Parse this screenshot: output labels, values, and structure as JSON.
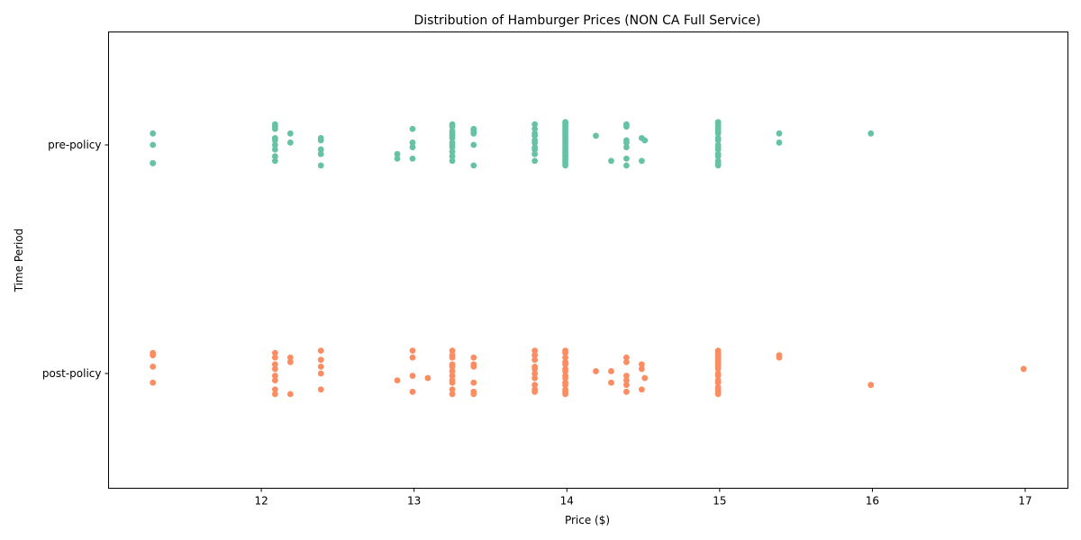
{
  "chart_data": {
    "type": "scatter",
    "title": "Distribution of Hamburger Prices (NON CA Full Service)",
    "xlabel": "Price ($)",
    "ylabel": "Time Period",
    "xlim": [
      11.0,
      17.28
    ],
    "x_ticks": [
      12,
      13,
      14,
      15,
      16,
      17
    ],
    "x_tick_labels": [
      "12",
      "13",
      "14",
      "15",
      "16",
      "17"
    ],
    "categories": [
      "pre-policy",
      "post-policy"
    ],
    "grid": false,
    "legend": "none",
    "series": [
      {
        "category": "pre-policy",
        "color": "#66c2a5",
        "points": [
          {
            "x": 11.29,
            "j": 0.05
          },
          {
            "x": 11.29,
            "j": 0.0
          },
          {
            "x": 11.29,
            "j": -0.08
          },
          {
            "x": 11.29,
            "j": -0.08
          },
          {
            "x": 12.09,
            "j": 0.09
          },
          {
            "x": 12.09,
            "j": 0.08
          },
          {
            "x": 12.09,
            "j": 0.07
          },
          {
            "x": 12.09,
            "j": 0.03
          },
          {
            "x": 12.09,
            "j": 0.02
          },
          {
            "x": 12.09,
            "j": 0.0
          },
          {
            "x": 12.09,
            "j": -0.02
          },
          {
            "x": 12.09,
            "j": -0.05
          },
          {
            "x": 12.09,
            "j": -0.07
          },
          {
            "x": 12.19,
            "j": 0.05
          },
          {
            "x": 12.19,
            "j": 0.01
          },
          {
            "x": 12.39,
            "j": 0.03
          },
          {
            "x": 12.39,
            "j": 0.02
          },
          {
            "x": 12.39,
            "j": -0.02
          },
          {
            "x": 12.39,
            "j": -0.04
          },
          {
            "x": 12.39,
            "j": -0.09
          },
          {
            "x": 12.89,
            "j": -0.04
          },
          {
            "x": 12.89,
            "j": -0.06
          },
          {
            "x": 12.99,
            "j": 0.07
          },
          {
            "x": 12.99,
            "j": 0.01
          },
          {
            "x": 12.99,
            "j": -0.01
          },
          {
            "x": 12.99,
            "j": -0.06
          },
          {
            "x": 13.25,
            "j": 0.09
          },
          {
            "x": 13.25,
            "j": 0.08
          },
          {
            "x": 13.25,
            "j": 0.06
          },
          {
            "x": 13.25,
            "j": 0.05
          },
          {
            "x": 13.25,
            "j": 0.04
          },
          {
            "x": 13.25,
            "j": 0.03
          },
          {
            "x": 13.25,
            "j": 0.01
          },
          {
            "x": 13.25,
            "j": 0.0
          },
          {
            "x": 13.25,
            "j": -0.01
          },
          {
            "x": 13.25,
            "j": -0.03
          },
          {
            "x": 13.25,
            "j": -0.05
          },
          {
            "x": 13.25,
            "j": -0.07
          },
          {
            "x": 13.39,
            "j": 0.07
          },
          {
            "x": 13.39,
            "j": 0.06
          },
          {
            "x": 13.39,
            "j": 0.05
          },
          {
            "x": 13.39,
            "j": 0.0
          },
          {
            "x": 13.39,
            "j": -0.09
          },
          {
            "x": 13.79,
            "j": 0.09
          },
          {
            "x": 13.79,
            "j": 0.07
          },
          {
            "x": 13.79,
            "j": 0.05
          },
          {
            "x": 13.79,
            "j": 0.04
          },
          {
            "x": 13.79,
            "j": 0.02
          },
          {
            "x": 13.79,
            "j": 0.01
          },
          {
            "x": 13.79,
            "j": -0.01
          },
          {
            "x": 13.79,
            "j": -0.02
          },
          {
            "x": 13.79,
            "j": -0.04
          },
          {
            "x": 13.79,
            "j": -0.07
          },
          {
            "x": 13.99,
            "j": 0.1
          },
          {
            "x": 13.99,
            "j": 0.09
          },
          {
            "x": 13.99,
            "j": 0.08
          },
          {
            "x": 13.99,
            "j": 0.07
          },
          {
            "x": 13.99,
            "j": 0.06
          },
          {
            "x": 13.99,
            "j": 0.05
          },
          {
            "x": 13.99,
            "j": 0.04
          },
          {
            "x": 13.99,
            "j": 0.03
          },
          {
            "x": 13.99,
            "j": 0.02
          },
          {
            "x": 13.99,
            "j": 0.01
          },
          {
            "x": 13.99,
            "j": 0.0
          },
          {
            "x": 13.99,
            "j": -0.01
          },
          {
            "x": 13.99,
            "j": -0.02
          },
          {
            "x": 13.99,
            "j": -0.03
          },
          {
            "x": 13.99,
            "j": -0.04
          },
          {
            "x": 13.99,
            "j": -0.05
          },
          {
            "x": 13.99,
            "j": -0.06
          },
          {
            "x": 13.99,
            "j": -0.07
          },
          {
            "x": 13.99,
            "j": -0.08
          },
          {
            "x": 13.99,
            "j": -0.09
          },
          {
            "x": 14.19,
            "j": 0.04
          },
          {
            "x": 14.29,
            "j": -0.07
          },
          {
            "x": 14.39,
            "j": 0.09
          },
          {
            "x": 14.39,
            "j": 0.08
          },
          {
            "x": 14.39,
            "j": 0.02
          },
          {
            "x": 14.39,
            "j": 0.01
          },
          {
            "x": 14.39,
            "j": -0.01
          },
          {
            "x": 14.39,
            "j": -0.06
          },
          {
            "x": 14.39,
            "j": -0.09
          },
          {
            "x": 14.49,
            "j": 0.03
          },
          {
            "x": 14.51,
            "j": 0.02
          },
          {
            "x": 14.49,
            "j": -0.07
          },
          {
            "x": 14.99,
            "j": 0.1
          },
          {
            "x": 14.99,
            "j": 0.09
          },
          {
            "x": 14.99,
            "j": 0.08
          },
          {
            "x": 14.99,
            "j": 0.07
          },
          {
            "x": 14.99,
            "j": 0.06
          },
          {
            "x": 14.99,
            "j": 0.05
          },
          {
            "x": 14.99,
            "j": 0.03
          },
          {
            "x": 14.99,
            "j": 0.02
          },
          {
            "x": 14.99,
            "j": 0.0
          },
          {
            "x": 14.99,
            "j": -0.01
          },
          {
            "x": 14.99,
            "j": -0.02
          },
          {
            "x": 14.99,
            "j": -0.04
          },
          {
            "x": 14.99,
            "j": -0.05
          },
          {
            "x": 14.99,
            "j": -0.07
          },
          {
            "x": 14.99,
            "j": -0.08
          },
          {
            "x": 14.99,
            "j": -0.09
          },
          {
            "x": 15.39,
            "j": 0.05
          },
          {
            "x": 15.39,
            "j": 0.01
          },
          {
            "x": 15.99,
            "j": 0.05
          }
        ]
      },
      {
        "category": "post-policy",
        "color": "#fc8d62",
        "points": [
          {
            "x": 11.29,
            "j": 0.09
          },
          {
            "x": 11.29,
            "j": 0.08
          },
          {
            "x": 11.29,
            "j": 0.03
          },
          {
            "x": 11.29,
            "j": -0.04
          },
          {
            "x": 12.09,
            "j": 0.09
          },
          {
            "x": 12.09,
            "j": 0.07
          },
          {
            "x": 12.09,
            "j": 0.04
          },
          {
            "x": 12.09,
            "j": 0.02
          },
          {
            "x": 12.09,
            "j": -0.01
          },
          {
            "x": 12.09,
            "j": -0.03
          },
          {
            "x": 12.09,
            "j": -0.07
          },
          {
            "x": 12.09,
            "j": -0.09
          },
          {
            "x": 12.19,
            "j": 0.07
          },
          {
            "x": 12.19,
            "j": 0.05
          },
          {
            "x": 12.19,
            "j": -0.09
          },
          {
            "x": 12.39,
            "j": 0.1
          },
          {
            "x": 12.39,
            "j": 0.06
          },
          {
            "x": 12.39,
            "j": 0.03
          },
          {
            "x": 12.39,
            "j": 0.0
          },
          {
            "x": 12.39,
            "j": -0.07
          },
          {
            "x": 12.89,
            "j": -0.03
          },
          {
            "x": 12.99,
            "j": 0.1
          },
          {
            "x": 12.99,
            "j": 0.07
          },
          {
            "x": 12.99,
            "j": -0.01
          },
          {
            "x": 12.99,
            "j": -0.08
          },
          {
            "x": 13.09,
            "j": -0.02
          },
          {
            "x": 13.25,
            "j": 0.1
          },
          {
            "x": 13.25,
            "j": 0.08
          },
          {
            "x": 13.25,
            "j": 0.07
          },
          {
            "x": 13.25,
            "j": 0.04
          },
          {
            "x": 13.25,
            "j": 0.03
          },
          {
            "x": 13.25,
            "j": 0.01
          },
          {
            "x": 13.25,
            "j": -0.01
          },
          {
            "x": 13.25,
            "j": -0.03
          },
          {
            "x": 13.25,
            "j": -0.04
          },
          {
            "x": 13.25,
            "j": -0.07
          },
          {
            "x": 13.25,
            "j": -0.09
          },
          {
            "x": 13.39,
            "j": 0.07
          },
          {
            "x": 13.39,
            "j": 0.04
          },
          {
            "x": 13.39,
            "j": 0.03
          },
          {
            "x": 13.39,
            "j": -0.04
          },
          {
            "x": 13.39,
            "j": -0.08
          },
          {
            "x": 13.39,
            "j": -0.09
          },
          {
            "x": 13.79,
            "j": 0.1
          },
          {
            "x": 13.79,
            "j": 0.08
          },
          {
            "x": 13.79,
            "j": 0.06
          },
          {
            "x": 13.79,
            "j": 0.03
          },
          {
            "x": 13.79,
            "j": 0.02
          },
          {
            "x": 13.79,
            "j": 0.0
          },
          {
            "x": 13.79,
            "j": -0.02
          },
          {
            "x": 13.79,
            "j": -0.05
          },
          {
            "x": 13.79,
            "j": -0.07
          },
          {
            "x": 13.79,
            "j": -0.08
          },
          {
            "x": 13.99,
            "j": 0.1
          },
          {
            "x": 13.99,
            "j": 0.09
          },
          {
            "x": 13.99,
            "j": 0.07
          },
          {
            "x": 13.99,
            "j": 0.05
          },
          {
            "x": 13.99,
            "j": 0.04
          },
          {
            "x": 13.99,
            "j": 0.02
          },
          {
            "x": 13.99,
            "j": 0.01
          },
          {
            "x": 13.99,
            "j": -0.01
          },
          {
            "x": 13.99,
            "j": -0.02
          },
          {
            "x": 13.99,
            "j": -0.04
          },
          {
            "x": 13.99,
            "j": -0.05
          },
          {
            "x": 13.99,
            "j": -0.07
          },
          {
            "x": 13.99,
            "j": -0.08
          },
          {
            "x": 13.99,
            "j": -0.09
          },
          {
            "x": 14.19,
            "j": 0.01
          },
          {
            "x": 14.29,
            "j": 0.01
          },
          {
            "x": 14.29,
            "j": -0.04
          },
          {
            "x": 14.39,
            "j": 0.07
          },
          {
            "x": 14.39,
            "j": 0.05
          },
          {
            "x": 14.39,
            "j": -0.01
          },
          {
            "x": 14.39,
            "j": -0.03
          },
          {
            "x": 14.39,
            "j": -0.05
          },
          {
            "x": 14.39,
            "j": -0.08
          },
          {
            "x": 14.49,
            "j": 0.04
          },
          {
            "x": 14.49,
            "j": 0.02
          },
          {
            "x": 14.51,
            "j": -0.02
          },
          {
            "x": 14.49,
            "j": -0.07
          },
          {
            "x": 14.99,
            "j": 0.1
          },
          {
            "x": 14.99,
            "j": 0.09
          },
          {
            "x": 14.99,
            "j": 0.08
          },
          {
            "x": 14.99,
            "j": 0.07
          },
          {
            "x": 14.99,
            "j": 0.06
          },
          {
            "x": 14.99,
            "j": 0.05
          },
          {
            "x": 14.99,
            "j": 0.04
          },
          {
            "x": 14.99,
            "j": 0.03
          },
          {
            "x": 14.99,
            "j": 0.02
          },
          {
            "x": 14.99,
            "j": 0.0
          },
          {
            "x": 14.99,
            "j": -0.01
          },
          {
            "x": 14.99,
            "j": -0.03
          },
          {
            "x": 14.99,
            "j": -0.04
          },
          {
            "x": 14.99,
            "j": -0.06
          },
          {
            "x": 14.99,
            "j": -0.07
          },
          {
            "x": 14.99,
            "j": -0.08
          },
          {
            "x": 14.99,
            "j": -0.09
          },
          {
            "x": 15.39,
            "j": 0.08
          },
          {
            "x": 15.39,
            "j": 0.07
          },
          {
            "x": 15.99,
            "j": -0.05
          },
          {
            "x": 16.99,
            "j": 0.02
          }
        ]
      }
    ]
  }
}
